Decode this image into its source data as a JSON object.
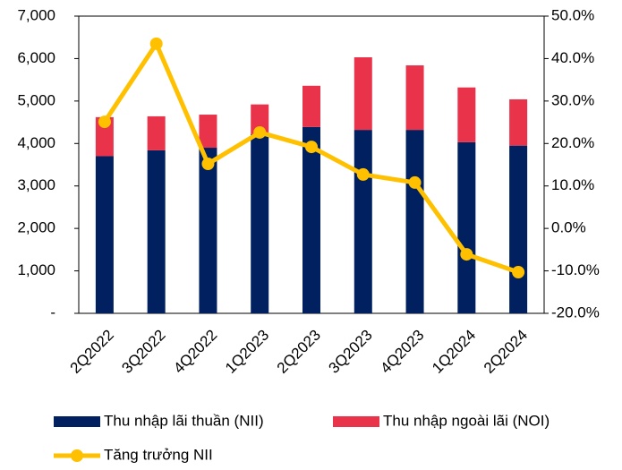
{
  "chart_data": {
    "type": "bar-line",
    "categories": [
      "2Q2022",
      "3Q2022",
      "4Q2022",
      "1Q2023",
      "2Q2023",
      "3Q2023",
      "4Q2023",
      "1Q2024",
      "2Q2024"
    ],
    "series": [
      {
        "name": "Thu nhập lãi thuần (NII)",
        "type": "bar",
        "color": "#002060",
        "values": [
          3700,
          3840,
          3900,
          4220,
          4390,
          4320,
          4320,
          4030,
          3950
        ]
      },
      {
        "name": "Thu nhập ngoài lãi (NOI)",
        "type": "bar",
        "color": "#e8334a",
        "values": [
          920,
          800,
          780,
          700,
          970,
          1710,
          1520,
          1290,
          1090
        ]
      },
      {
        "name": "Tăng trưởng NII",
        "type": "line",
        "axis": "y2",
        "color": "#ffc000",
        "values": [
          25.1,
          43.5,
          15.2,
          22.6,
          19.2,
          12.7,
          10.8,
          -6.1,
          -10.3
        ]
      }
    ],
    "stacked": true,
    "ylim": [
      0,
      7000
    ],
    "yticks": [
      {
        "value": 0,
        "label": "-"
      },
      {
        "value": 1000,
        "label": "1,000"
      },
      {
        "value": 2000,
        "label": "2,000"
      },
      {
        "value": 3000,
        "label": "3,000"
      },
      {
        "value": 4000,
        "label": "4,000"
      },
      {
        "value": 5000,
        "label": "5,000"
      },
      {
        "value": 6000,
        "label": "6,000"
      },
      {
        "value": 7000,
        "label": "7,000"
      }
    ],
    "y2lim": [
      -20,
      50
    ],
    "y2ticks": [
      {
        "value": -20,
        "label": "-20.0%"
      },
      {
        "value": -10,
        "label": "-10.0%"
      },
      {
        "value": 0,
        "label": "0.0%"
      },
      {
        "value": 10,
        "label": "10.0%"
      },
      {
        "value": 20,
        "label": "20.0%"
      },
      {
        "value": 30,
        "label": "30.0%"
      },
      {
        "value": 40,
        "label": "40.0%"
      },
      {
        "value": 50,
        "label": "50.0%"
      }
    ]
  }
}
